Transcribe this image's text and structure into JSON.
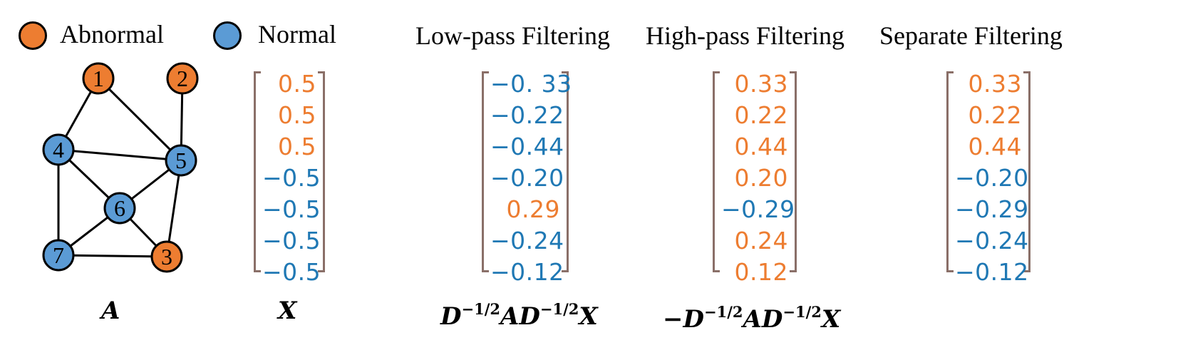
{
  "legend": {
    "abnormal": {
      "label": "Abnormal",
      "color": "#ed7d31"
    },
    "normal": {
      "label": "Normal",
      "color": "#5b9bd5"
    }
  },
  "graph": {
    "nodes": [
      {
        "id": "1",
        "class": "abnormal"
      },
      {
        "id": "2",
        "class": "abnormal"
      },
      {
        "id": "3",
        "class": "abnormal"
      },
      {
        "id": "4",
        "class": "normal"
      },
      {
        "id": "5",
        "class": "normal"
      },
      {
        "id": "6",
        "class": "normal"
      },
      {
        "id": "7",
        "class": "normal"
      }
    ],
    "edges": [
      [
        "1",
        "4"
      ],
      [
        "1",
        "5"
      ],
      [
        "2",
        "5"
      ],
      [
        "4",
        "5"
      ],
      [
        "4",
        "6"
      ],
      [
        "4",
        "7"
      ],
      [
        "5",
        "6"
      ],
      [
        "5",
        "3"
      ],
      [
        "6",
        "7"
      ],
      [
        "6",
        "3"
      ],
      [
        "7",
        "3"
      ]
    ]
  },
  "matrices": {
    "x": {
      "values": [
        "0.5",
        "0.5",
        "0.5",
        "−0.5",
        "−0.5",
        "−0.5",
        "−0.5"
      ]
    },
    "low": {
      "heading": "Low-pass Filtering",
      "values": [
        "−0. 33",
        "−0.22",
        "−0.44",
        "−0.20",
        "0.29",
        "−0.24",
        "−0.12"
      ]
    },
    "high": {
      "heading": "High-pass Filtering",
      "values": [
        "0.33",
        "0.22",
        "0.44",
        "0.20",
        "−0.29",
        "0.24",
        "0.12"
      ]
    },
    "separate": {
      "heading": "Separate Filtering",
      "values": [
        "0.33",
        "0.22",
        "0.44",
        "−0.20",
        "−0.29",
        "−0.24",
        "−0.12"
      ]
    }
  },
  "formulas": {
    "a": "A",
    "x": "X",
    "low": {
      "d1": "D",
      "e1": "−1/2",
      "a": "AD",
      "e2": "−1/2",
      "x": "X"
    },
    "high": {
      "neg": "−",
      "d1": "D",
      "e1": "−1/2",
      "a": "AD",
      "e2": "−1/2",
      "x": "X"
    }
  },
  "colors": {
    "positive": "#ed7d31",
    "negative": "#1f78b4",
    "bracket": "#8a6f68"
  }
}
